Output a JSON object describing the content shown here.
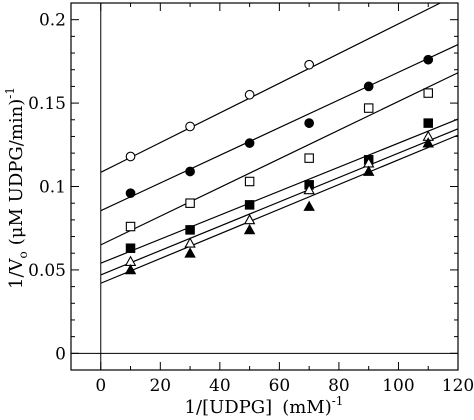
{
  "chart_data": {
    "type": "scatter",
    "xlabel": "1/[UDPG]",
    "xlabel_units": "(mM)",
    "xlabel_exponent": "-1",
    "ylabel": "1/V",
    "ylabel_subscript": "o",
    "ylabel_units": "(μM UDPG/min)",
    "ylabel_exponent": "-1",
    "xlim": [
      -10,
      120
    ],
    "ylim": [
      -0.01,
      0.21
    ],
    "x_ticks": [
      0,
      20,
      40,
      60,
      80,
      100,
      120
    ],
    "x_tick_labels": [
      "0",
      "20",
      "40",
      "60",
      "80",
      "100",
      "120"
    ],
    "y_ticks": [
      0,
      0.05,
      0.1,
      0.15,
      0.2
    ],
    "y_tick_labels": [
      "0",
      "0.05",
      "0.1",
      "0.15",
      "0.2"
    ],
    "grid": false,
    "reference_lines": {
      "x_zero": true,
      "y_zero": true
    },
    "x": [
      10,
      30,
      50,
      70,
      90,
      110
    ],
    "series": [
      {
        "marker": "open-circle",
        "values": [
          0.118,
          0.136,
          0.155,
          0.173,
          null,
          null
        ],
        "fit": {
          "intercept": 0.1085,
          "slope": 0.00089
        }
      },
      {
        "marker": "filled-circle",
        "values": [
          0.096,
          0.109,
          0.126,
          0.138,
          0.16,
          0.176
        ],
        "fit": {
          "intercept": 0.0855,
          "slope": 0.00083
        }
      },
      {
        "marker": "open-square",
        "values": [
          0.076,
          0.09,
          0.103,
          0.117,
          0.147,
          0.156
        ],
        "fit": {
          "intercept": 0.065,
          "slope": 0.00086
        }
      },
      {
        "marker": "filled-square",
        "values": [
          0.063,
          0.074,
          0.089,
          0.101,
          0.116,
          0.138
        ],
        "fit": {
          "intercept": 0.054,
          "slope": 0.00072
        }
      },
      {
        "marker": "open-triangle",
        "values": [
          0.055,
          0.066,
          0.08,
          0.098,
          0.114,
          0.13
        ],
        "fit": {
          "intercept": 0.047,
          "slope": 0.00073
        }
      },
      {
        "marker": "filled-triangle",
        "values": [
          0.05,
          0.06,
          0.074,
          0.088,
          0.109,
          0.126
        ],
        "fit": {
          "intercept": 0.042,
          "slope": 0.00074
        }
      }
    ]
  }
}
